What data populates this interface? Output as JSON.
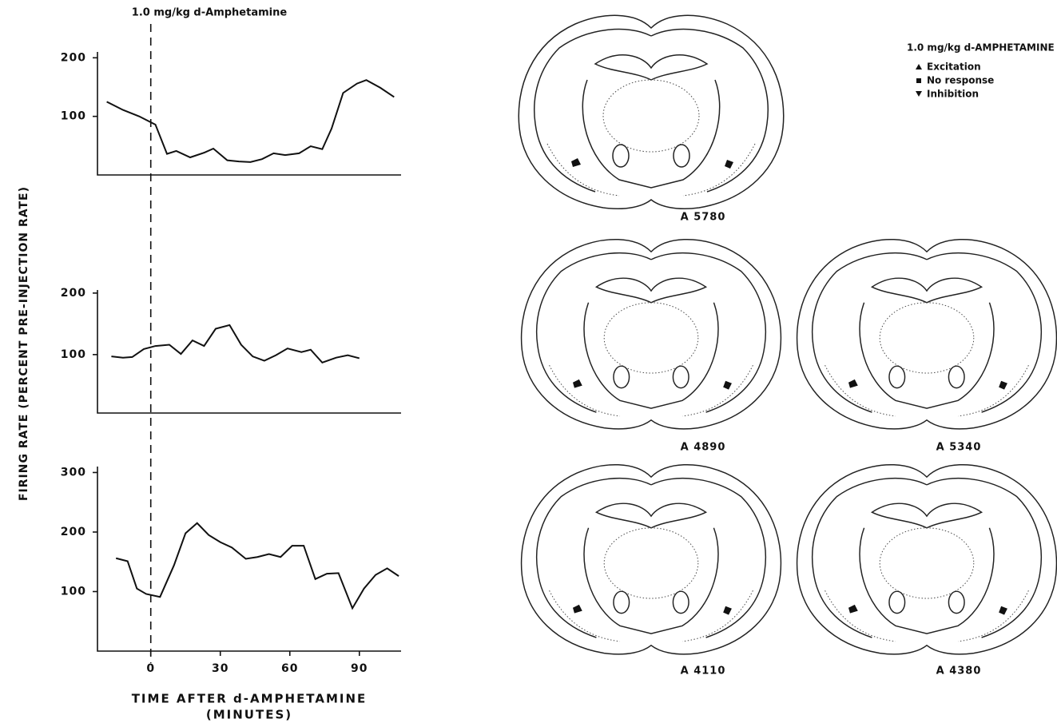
{
  "figure": {
    "ylabel": "FIRING RATE (PERCENT PRE-INJECTION RATE)",
    "xlabel": [
      "TIME AFTER d-AMPHETAMINE",
      "(MINUTES)"
    ],
    "marker": {
      "label": "1.0 mg/kg d-Amphetamine",
      "x": 0
    }
  },
  "chart_data": [
    {
      "type": "line",
      "xlim": [
        -23,
        108
      ],
      "ylim": [
        0,
        210
      ],
      "yticks": [
        100,
        200
      ],
      "color": "#111111",
      "x": [
        -19,
        -12,
        -5,
        2,
        7,
        11,
        17,
        23,
        27,
        33,
        38,
        43,
        48,
        53,
        58,
        64,
        69,
        74,
        78,
        83,
        89,
        93,
        99,
        105
      ],
      "values": [
        125,
        111,
        100,
        86,
        36,
        41,
        30,
        38,
        45,
        25,
        23,
        22,
        27,
        37,
        34,
        37,
        49,
        44,
        79,
        140,
        156,
        162,
        149,
        133
      ]
    },
    {
      "type": "line",
      "xlim": [
        -23,
        108
      ],
      "ylim": [
        5,
        205
      ],
      "yticks": [
        100,
        200
      ],
      "color": "#111111",
      "x": [
        -17,
        -12,
        -8,
        -3,
        2,
        8,
        13,
        18,
        23,
        28,
        34,
        39,
        44,
        49,
        54,
        59,
        65,
        69,
        74,
        80,
        85,
        90
      ],
      "values": [
        97,
        95,
        96,
        109,
        114,
        116,
        101,
        123,
        114,
        142,
        148,
        116,
        97,
        90,
        99,
        110,
        104,
        108,
        87,
        95,
        99,
        94
      ]
    },
    {
      "type": "line",
      "xlim": [
        -23,
        108
      ],
      "ylim": [
        0,
        310
      ],
      "yticks": [
        100,
        200,
        300
      ],
      "xticks": [
        0,
        30,
        60,
        90
      ],
      "color": "#111111",
      "x": [
        -15,
        -10,
        -6,
        -2,
        4,
        10,
        15,
        20,
        25,
        30,
        35,
        41,
        46,
        51,
        56,
        61,
        66,
        71,
        76,
        81,
        87,
        92,
        97,
        102,
        107
      ],
      "values": [
        156,
        151,
        105,
        96,
        91,
        144,
        198,
        215,
        195,
        183,
        174,
        155,
        158,
        163,
        158,
        177,
        177,
        121,
        130,
        131,
        72,
        105,
        128,
        139,
        126
      ]
    }
  ],
  "legend": {
    "title": "1.0 mg/kg d-AMPHETAMINE",
    "entries": [
      "Excitation",
      "No response",
      "Inhibition"
    ]
  },
  "sections": [
    "A 5780",
    "A 4890",
    "A 5340",
    "A 4110",
    "A 4380"
  ]
}
